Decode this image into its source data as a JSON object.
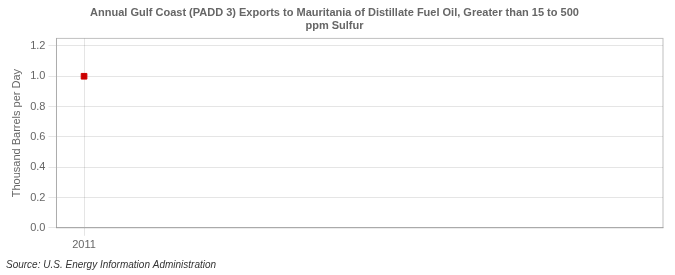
{
  "chart_data": {
    "type": "scatter",
    "title": "Annual Gulf Coast (PADD 3) Exports to Mauritania of Distillate Fuel Oil, Greater than 15 to 500\nppm Sulfur",
    "ylabel": "Thousand Barrels per Day",
    "annotations": [
      "Source: U.S. Energy Information Administration"
    ],
    "x": [
      2011
    ],
    "values": [
      1.0
    ],
    "color": "#cc0000",
    "marker": "square",
    "xlim": [
      2010.4,
      2023.6
    ],
    "ylim": [
      0.0,
      1.25
    ],
    "xticks": [
      2011
    ],
    "yticks": [
      {
        "value": 0.0,
        "label": "0.0"
      },
      0.2,
      0.4,
      0.6,
      0.8,
      {
        "value": 1.0,
        "label": "1.0"
      },
      1.2
    ],
    "grid": true
  }
}
